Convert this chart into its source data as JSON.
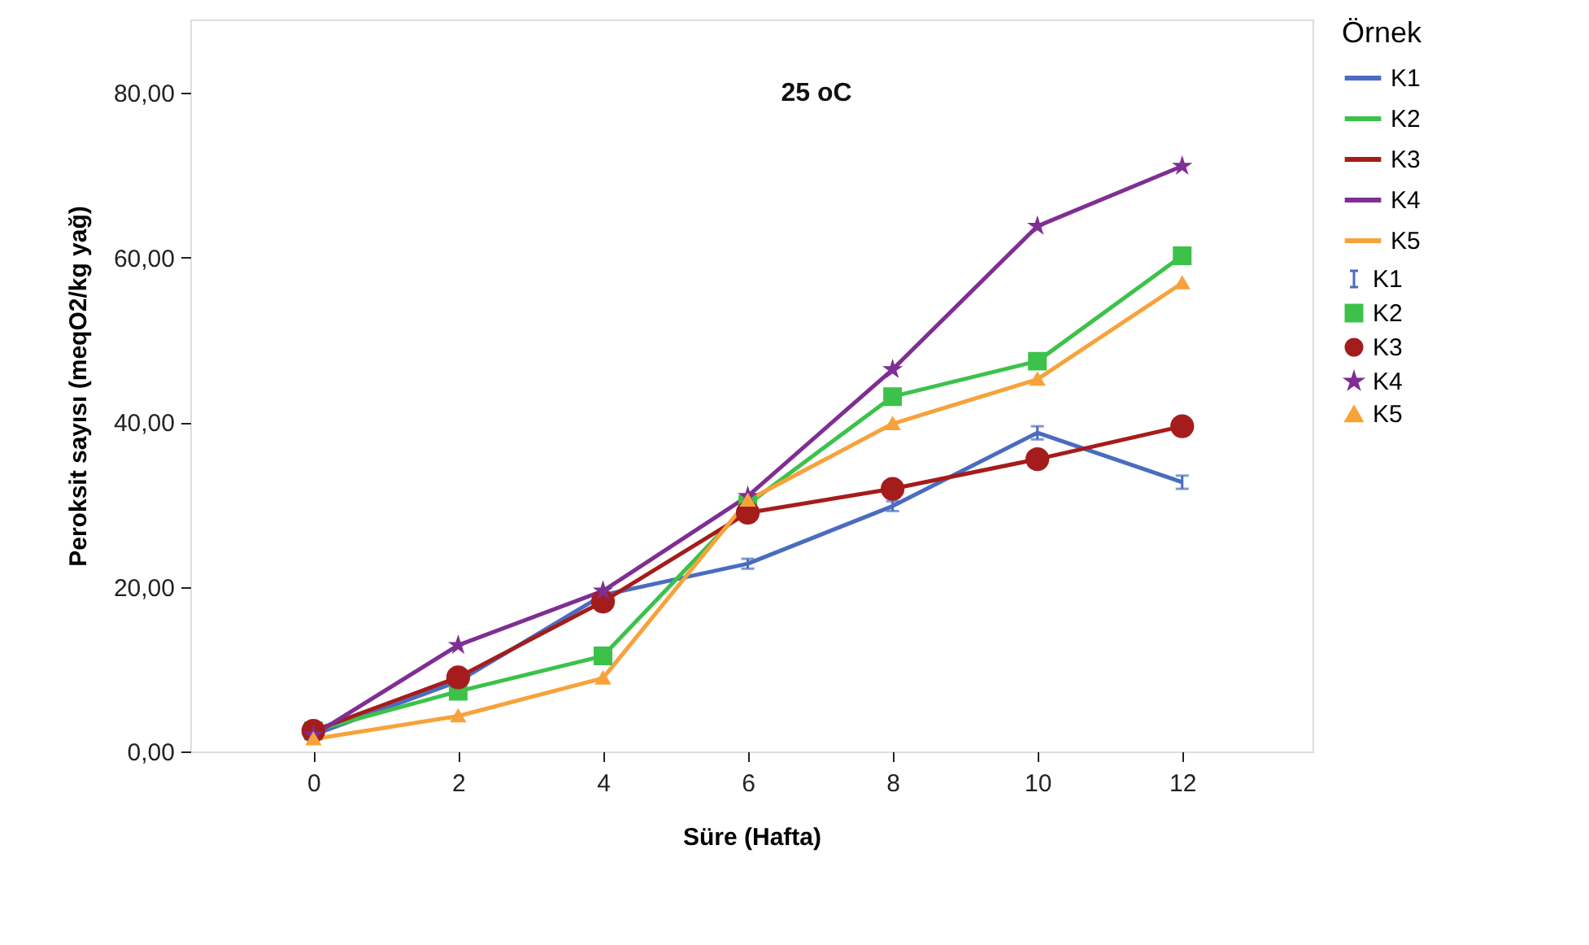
{
  "chart_data": {
    "type": "line",
    "title": "25 oC",
    "xlabel": "Süre  (Hafta)",
    "ylabel": "Peroksit sayısı (meqO2/kg yağ)",
    "legend_title": "Örnek",
    "legend": "right",
    "grid": false,
    "x": [
      0,
      2,
      4,
      6,
      8,
      10,
      12
    ],
    "xlim": [
      -1.7,
      13.8
    ],
    "xticks": [
      0,
      2,
      4,
      6,
      8,
      10,
      12
    ],
    "ylim": [
      0,
      88.9
    ],
    "yticks": [
      {
        "value": 0,
        "label": "0,00"
      },
      {
        "value": 20,
        "label": "20,00"
      },
      {
        "value": 40,
        "label": "40,00"
      },
      {
        "value": 60,
        "label": "60,00"
      },
      {
        "value": 80,
        "label": "80,00"
      }
    ],
    "series": [
      {
        "name": "K1",
        "color": "#4a6cc0",
        "marker": "none",
        "values": [
          2.0,
          8.5,
          19.0,
          22.8,
          29.8,
          38.7,
          32.7
        ],
        "errors": [
          null,
          null,
          null,
          0.6,
          0.6,
          0.8,
          0.8
        ]
      },
      {
        "name": "K2",
        "color": "#3cc24a",
        "marker": "square",
        "values": [
          2.5,
          7.3,
          11.6,
          30.0,
          43.1,
          47.4,
          60.2
        ]
      },
      {
        "name": "K3",
        "color": "#a51c1c",
        "marker": "circle",
        "values": [
          2.5,
          9.0,
          18.2,
          29.0,
          31.9,
          35.5,
          39.5
        ]
      },
      {
        "name": "K4",
        "color": "#7f2e93",
        "marker": "star",
        "values": [
          2.0,
          12.9,
          19.5,
          31.0,
          46.4,
          63.8,
          71.1
        ]
      },
      {
        "name": "K5",
        "color": "#f7a23a",
        "marker": "triangle",
        "values": [
          1.5,
          4.3,
          8.9,
          30.5,
          39.8,
          45.2,
          56.9
        ]
      }
    ]
  }
}
